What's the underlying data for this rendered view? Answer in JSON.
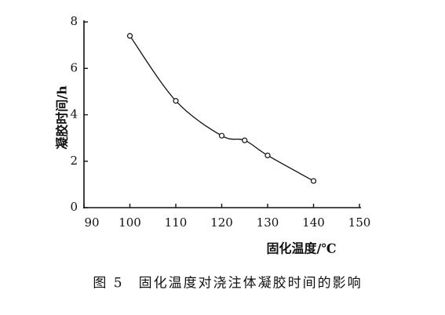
{
  "chart_data": {
    "type": "line",
    "caption": "图 5　固化温度对浇注体凝胶时间的影响",
    "xlabel": "固化温度/℃",
    "ylabel": "凝胶时间/h",
    "x": [
      100,
      110,
      120,
      125,
      130,
      140
    ],
    "series": [
      {
        "color": "#111111",
        "values": [
          7.4,
          4.6,
          3.1,
          2.9,
          2.25,
          1.15
        ]
      }
    ],
    "xlim": [
      90,
      150
    ],
    "xticks": [
      90,
      100,
      110,
      120,
      130,
      140,
      150
    ],
    "ylim": [
      0,
      8
    ],
    "yticks": [
      0,
      2,
      4,
      6,
      8
    ],
    "smooth": true,
    "markers": true
  }
}
